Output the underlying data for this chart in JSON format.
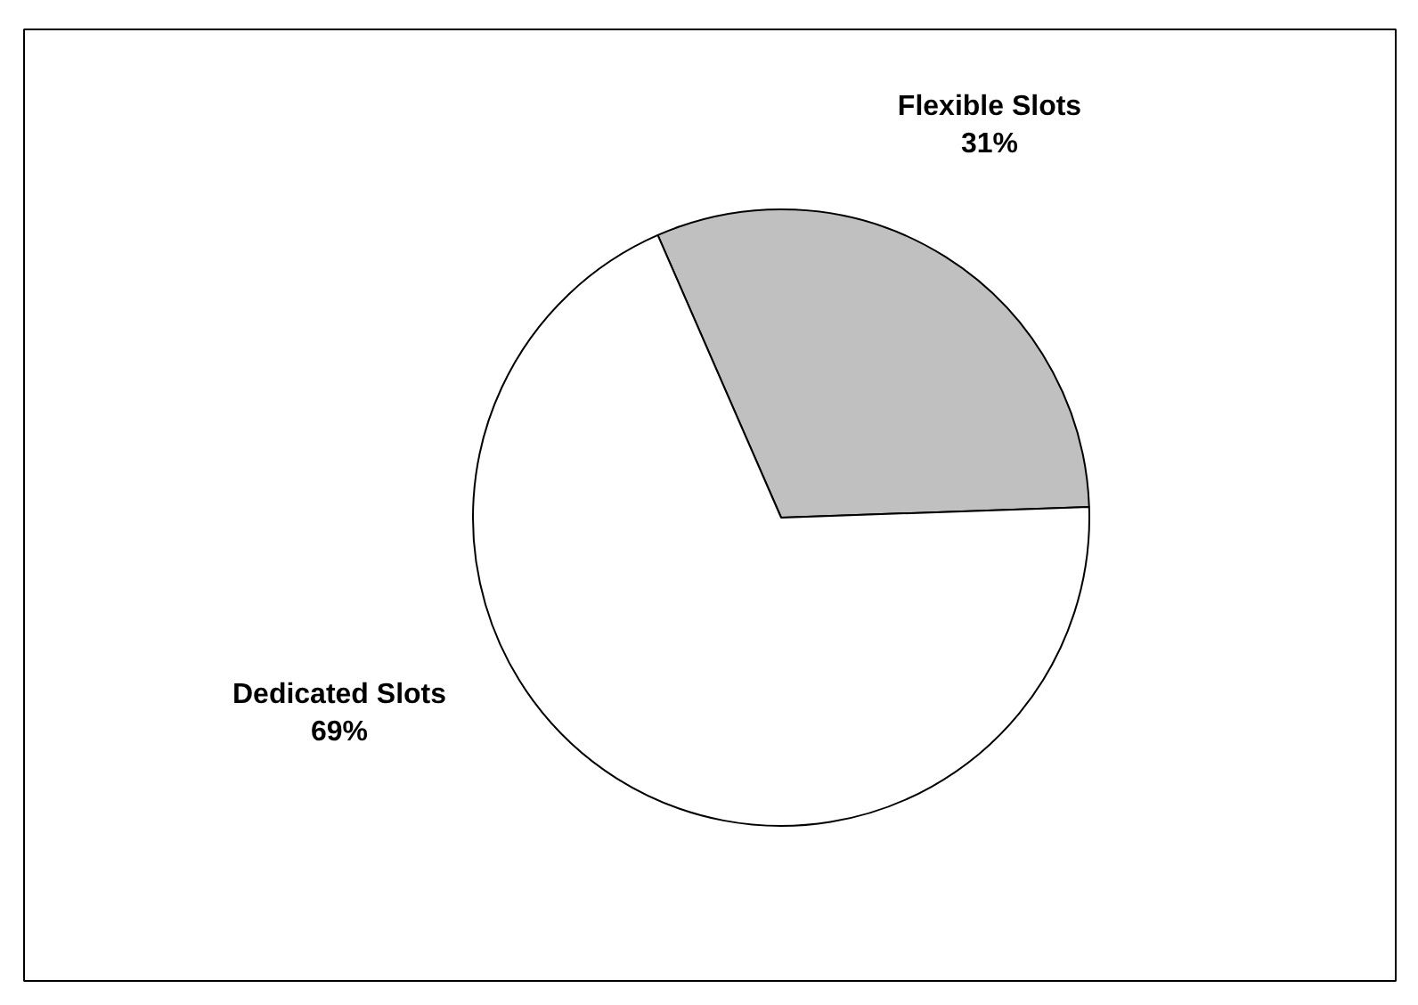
{
  "chart_data": {
    "type": "pie",
    "categories": [
      "Flexible Slots",
      "Dedicated Slots"
    ],
    "values": [
      31,
      69
    ],
    "colors": [
      "#c0c0c0",
      "#ffffff"
    ],
    "value_labels": [
      "31%",
      "69%"
    ]
  }
}
